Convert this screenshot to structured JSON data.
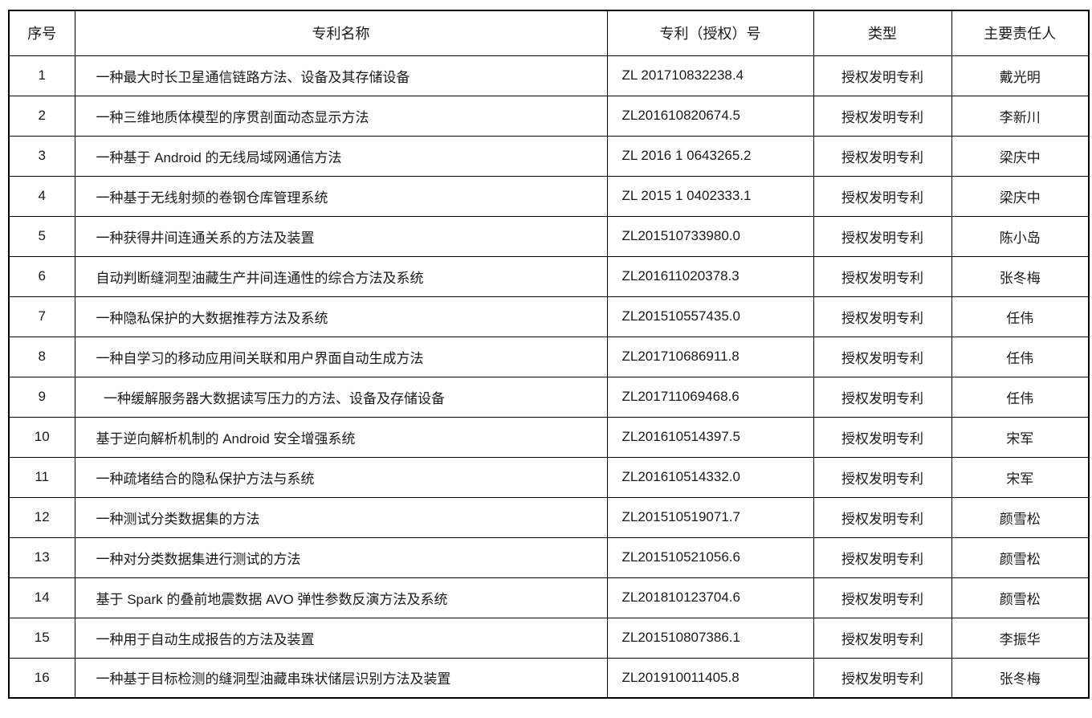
{
  "table": {
    "columns": [
      {
        "key": "index",
        "label": "序号"
      },
      {
        "key": "name",
        "label": "专利名称"
      },
      {
        "key": "number",
        "label": "专利（授权）号"
      },
      {
        "key": "type",
        "label": "类型"
      },
      {
        "key": "owner",
        "label": "主要责任人"
      }
    ],
    "rows": [
      {
        "index": "1",
        "name": "一种最大时长卫星通信链路方法、设备及其存储设备",
        "number": "ZL 201710832238.4",
        "type": "授权发明专利",
        "owner": "戴光明"
      },
      {
        "index": "2",
        "name": "一种三维地质体模型的序贯剖面动态显示方法",
        "number": "ZL201610820674.5",
        "type": "授权发明专利",
        "owner": "李新川"
      },
      {
        "index": "3",
        "name": "一种基于 Android 的无线局域网通信方法",
        "number": "ZL 2016 1 0643265.2",
        "type": "授权发明专利",
        "owner": "梁庆中"
      },
      {
        "index": "4",
        "name": "一种基于无线射频的卷钢仓库管理系统",
        "number": "ZL 2015 1 0402333.1",
        "type": "授权发明专利",
        "owner": "梁庆中"
      },
      {
        "index": "5",
        "name": "一种获得井间连通关系的方法及装置",
        "number": "ZL201510733980.0",
        "type": "授权发明专利",
        "owner": "陈小岛"
      },
      {
        "index": "6",
        "name": "自动判断缝洞型油藏生产井间连通性的综合方法及系统",
        "number": "ZL201611020378.3",
        "type": "授权发明专利",
        "owner": "张冬梅"
      },
      {
        "index": "7",
        "name": "一种隐私保护的大数据推荐方法及系统",
        "number": "ZL201510557435.0",
        "type": "授权发明专利",
        "owner": "任伟"
      },
      {
        "index": "8",
        "name": "一种自学习的移动应用间关联和用户界面自动生成方法",
        "number": "ZL201710686911.8",
        "type": "授权发明专利",
        "owner": "任伟"
      },
      {
        "index": "9",
        "name": "  一种缓解服务器大数据读写压力的方法、设备及存储设备",
        "number": "ZL201711069468.6",
        "type": "授权发明专利",
        "owner": "任伟"
      },
      {
        "index": "10",
        "name": "基于逆向解析机制的 Android 安全增强系统",
        "number": "ZL201610514397.5",
        "type": "授权发明专利",
        "owner": "宋军"
      },
      {
        "index": "11",
        "name": "一种疏堵结合的隐私保护方法与系统",
        "number": "ZL201610514332.0",
        "type": "授权发明专利",
        "owner": "宋军"
      },
      {
        "index": "12",
        "name": "一种测试分类数据集的方法",
        "number": "ZL201510519071.7",
        "type": "授权发明专利",
        "owner": "颜雪松"
      },
      {
        "index": "13",
        "name": "一种对分类数据集进行测试的方法",
        "number": "ZL201510521056.6",
        "type": "授权发明专利",
        "owner": "颜雪松"
      },
      {
        "index": "14",
        "name": "基于 Spark 的叠前地震数据 AVO 弹性参数反演方法及系统",
        "number": "ZL201810123704.6",
        "type": "授权发明专利",
        "owner": "颜雪松"
      },
      {
        "index": "15",
        "name": "一种用于自动生成报告的方法及装置",
        "number": "ZL201510807386.1",
        "type": "授权发明专利",
        "owner": "李振华"
      },
      {
        "index": "16",
        "name": "一种基于目标检测的缝洞型油藏串珠状储层识别方法及装置",
        "number": "ZL201910011405.8",
        "type": "授权发明专利",
        "owner": "张冬梅"
      }
    ]
  },
  "colors": {
    "border": "#000000",
    "text": "#1a1a1a",
    "background": "#ffffff"
  }
}
